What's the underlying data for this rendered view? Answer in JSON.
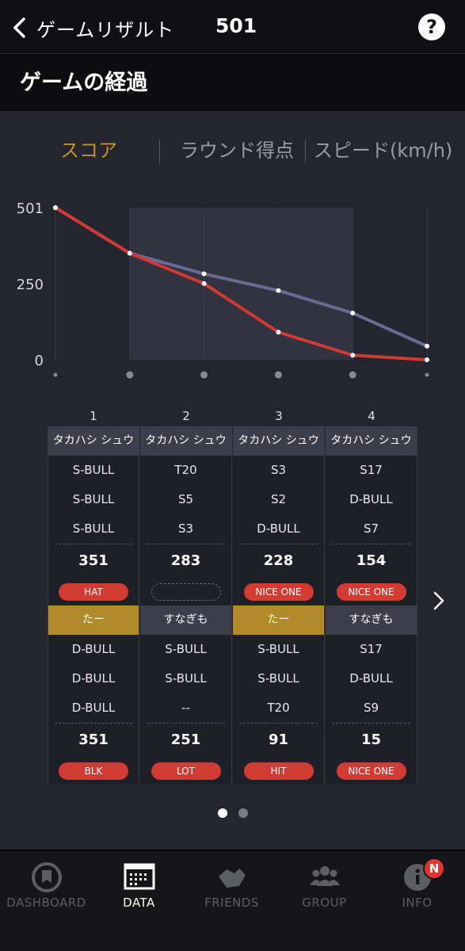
{
  "header": {
    "title": "ゲームリザルト",
    "score": "501",
    "help": "?"
  },
  "section": {
    "title": "ゲームの経過"
  },
  "tabs": [
    {
      "label": "スコア",
      "active": true
    },
    {
      "label": "ラウンド得点",
      "active": false
    },
    {
      "label": "スピード(km/h)",
      "active": false
    }
  ],
  "chart_data": {
    "type": "line",
    "x": [
      0,
      1,
      2,
      3,
      4,
      5
    ],
    "ylim": [
      0,
      501
    ],
    "yticks": [
      "501",
      "250",
      "0"
    ],
    "highlight_range": [
      1,
      4
    ],
    "series": [
      {
        "values": [
          501,
          351,
          251,
          91,
          15,
          0
        ],
        "color": "#d03a35"
      },
      {
        "values": [
          501,
          351,
          283,
          228,
          154,
          45
        ],
        "color": "#6a6a94"
      }
    ]
  },
  "rounds": [
    {
      "number": "1",
      "p1": {
        "name": "タカハシ シュウ",
        "throws": [
          "S-BULL",
          "S-BULL",
          "S-BULL"
        ],
        "total": "351",
        "badge": "HAT"
      },
      "p2": {
        "name": "たー",
        "throws": [
          "D-BULL",
          "D-BULL",
          "D-BULL"
        ],
        "total": "351",
        "badge": "BLK",
        "gold": true
      }
    },
    {
      "number": "2",
      "p1": {
        "name": "タカハシ シュウ",
        "throws": [
          "T20",
          "S5",
          "S3"
        ],
        "total": "283",
        "badge": ""
      },
      "p2": {
        "name": "すなぎも",
        "throws": [
          "S-BULL",
          "S-BULL",
          "--"
        ],
        "total": "251",
        "badge": "LOT",
        "gold": false
      }
    },
    {
      "number": "3",
      "p1": {
        "name": "タカハシ シュウ",
        "throws": [
          "S3",
          "S2",
          "D-BULL"
        ],
        "total": "228",
        "badge": "NICE ONE"
      },
      "p2": {
        "name": "たー",
        "throws": [
          "S-BULL",
          "S-BULL",
          "T20"
        ],
        "total": "91",
        "badge": "HIT",
        "gold": true
      }
    },
    {
      "number": "4",
      "p1": {
        "name": "タカハシ シュウ",
        "throws": [
          "S17",
          "D-BULL",
          "S7"
        ],
        "total": "154",
        "badge": "NICE ONE"
      },
      "p2": {
        "name": "すなぎも",
        "throws": [
          "S17",
          "D-BULL",
          "S9"
        ],
        "total": "15",
        "badge": "NICE ONE",
        "gold": false
      }
    }
  ],
  "pager": {
    "count": 2,
    "active": 0
  },
  "nav": [
    {
      "label": "DASHBOARD",
      "icon": "dashboard-icon",
      "active": false
    },
    {
      "label": "DATA",
      "icon": "data-icon",
      "active": true
    },
    {
      "label": "FRIENDS",
      "icon": "friends-icon",
      "active": false
    },
    {
      "label": "GROUP",
      "icon": "group-icon",
      "active": false
    },
    {
      "label": "INFO",
      "icon": "info-icon",
      "active": false,
      "badge": "N"
    }
  ]
}
